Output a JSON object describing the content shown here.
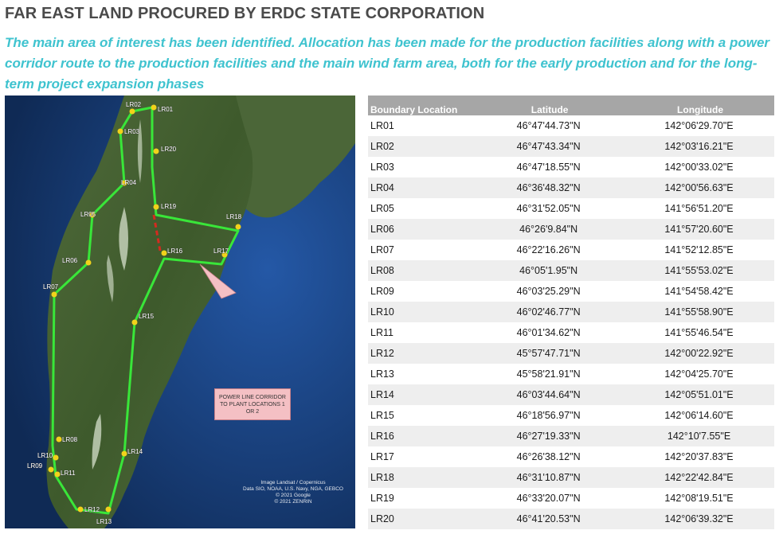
{
  "title": "FAR EAST LAND PROCURED BY ERDC STATE CORPORATION",
  "subtitle": "The main area of interest has been identified. Allocation has been made for the production facilities along with a power corridor route to the production facilities and the main wind farm area, both for the early production and for the long-term project expansion phases",
  "map": {
    "callout": "POWER LINE CORRIDOR TO PLANT LOCATIONS 1 OR 2",
    "credits": [
      "Image Landsat / Copernicus",
      "Data SIO, NOAA, U.S. Navy, NGA, GEBCO",
      "© 2021 Google",
      "© 2021 ZENRIN"
    ],
    "boundary_color": "#39e639",
    "marker_color": "#f2d21b",
    "markers": [
      "LR01",
      "LR02",
      "LR03",
      "LR04",
      "LR05",
      "LR06",
      "LR07",
      "LR08",
      "LR09",
      "LR10",
      "LR11",
      "LR12",
      "LR13",
      "LR14",
      "LR15",
      "LR16",
      "LR17",
      "LR18",
      "LR19",
      "LR20"
    ]
  },
  "table": {
    "headers": [
      "Boundary Location",
      "Latitude",
      "Longitude"
    ],
    "rows": [
      {
        "loc": "LR01",
        "lat": "46°47'44.73\"N",
        "lon": "142°06'29.70\"E"
      },
      {
        "loc": "LR02",
        "lat": "46°47'43.34\"N",
        "lon": "142°03'16.21\"E"
      },
      {
        "loc": "LR03",
        "lat": "46°47'18.55\"N",
        "lon": "142°00'33.02\"E"
      },
      {
        "loc": "LR04",
        "lat": "46°36'48.32\"N",
        "lon": "142°00'56.63\"E"
      },
      {
        "loc": "LR05",
        "lat": "46°31'52.05\"N",
        "lon": "141°56'51.20\"E"
      },
      {
        "loc": "LR06",
        "lat": "46°26'9.84\"N",
        "lon": "141°57'20.60\"E"
      },
      {
        "loc": "LR07",
        "lat": "46°22'16.26\"N",
        "lon": "141°52'12.85\"E"
      },
      {
        "loc": "LR08",
        "lat": "46°05'1.95\"N",
        "lon": "141°55'53.02\"E"
      },
      {
        "loc": "LR09",
        "lat": "46°03'25.29\"N",
        "lon": "141°54'58.42\"E"
      },
      {
        "loc": "LR10",
        "lat": "46°02'46.77\"N",
        "lon": "141°55'58.90\"E"
      },
      {
        "loc": "LR11",
        "lat": "46°01'34.62\"N",
        "lon": "141°55'46.54\"E"
      },
      {
        "loc": "LR12",
        "lat": "45°57'47.71\"N",
        "lon": "142°00'22.92\"E"
      },
      {
        "loc": "LR13",
        "lat": "45°58'21.91\"N",
        "lon": "142°04'25.70\"E"
      },
      {
        "loc": "LR14",
        "lat": "46°03'44.64\"N",
        "lon": "142°05'51.01\"E"
      },
      {
        "loc": "LR15",
        "lat": "46°18'56.97\"N",
        "lon": "142°06'14.60\"E"
      },
      {
        "loc": "LR16",
        "lat": "46°27'19.33\"N",
        "lon": "142°10'7.55\"E"
      },
      {
        "loc": "LR17",
        "lat": "46°26'38.12\"N",
        "lon": "142°20'37.83\"E"
      },
      {
        "loc": "LR18",
        "lat": "46°31'10.87\"N",
        "lon": "142°22'42.84\"E"
      },
      {
        "loc": "LR19",
        "lat": "46°33'20.07\"N",
        "lon": "142°08'19.51\"E"
      },
      {
        "loc": "LR20",
        "lat": "46°41'20.53\"N",
        "lon": "142°06'39.32\"E"
      }
    ]
  }
}
